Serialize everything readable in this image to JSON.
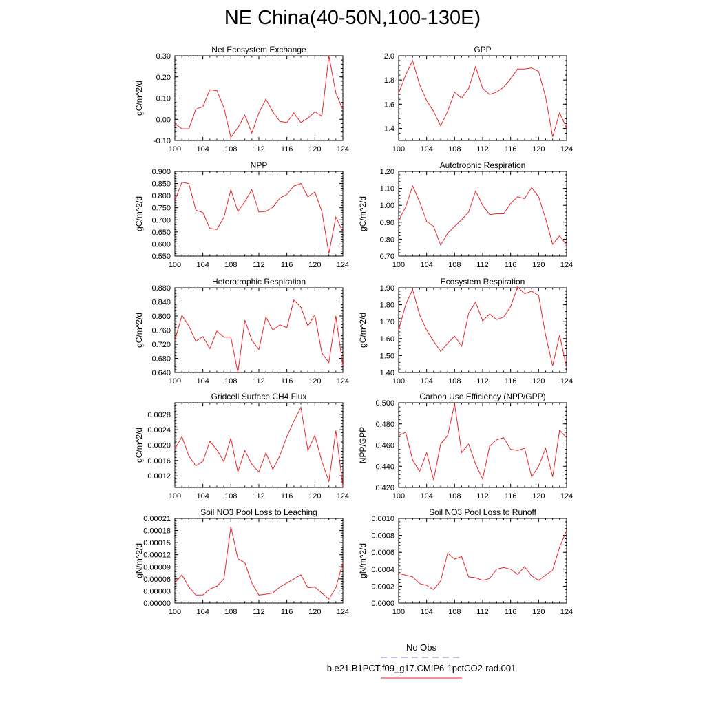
{
  "title": "NE China(40-50N,100-130E)",
  "legend": {
    "entries": [
      {
        "label": "No Obs",
        "color": "#7b7bd6",
        "dashed": true
      },
      {
        "label": "b.e21.B1PCT.f09_g17.CMIP6-1pctCO2-rad.001",
        "color": "#e8262a",
        "dashed": false
      }
    ]
  },
  "line_color": "#e8262a",
  "chart_data": [
    {
      "type": "line",
      "title": "Net Ecosystem Exchange",
      "ylabel": "gC/m^2/d",
      "xlim": [
        100,
        124
      ],
      "ylim": [
        -0.1,
        0.3
      ],
      "xticks": [
        "100",
        "104",
        "108",
        "112",
        "116",
        "120",
        "124"
      ],
      "yticks": [
        "-0.10",
        "0.00",
        "0.10",
        "0.20",
        "0.30"
      ],
      "x": [
        100,
        101,
        102,
        103,
        104,
        105,
        106,
        107,
        108,
        109,
        110,
        111,
        112,
        113,
        114,
        115,
        116,
        117,
        118,
        119,
        120,
        121,
        122,
        123,
        124
      ],
      "y": [
        -0.02,
        -0.045,
        -0.045,
        0.048,
        0.06,
        0.14,
        0.135,
        0.055,
        -0.085,
        -0.04,
        0.02,
        -0.065,
        0.03,
        0.095,
        0.035,
        -0.01,
        -0.015,
        0.03,
        -0.015,
        0.005,
        0.035,
        0.015,
        0.3,
        0.125,
        0.045
      ]
    },
    {
      "type": "line",
      "title": "GPP",
      "ylabel": "",
      "xlim": [
        100,
        124
      ],
      "ylim": [
        1.3,
        2.0
      ],
      "xticks": [
        "100",
        "104",
        "108",
        "112",
        "116",
        "120",
        "124"
      ],
      "yticks": [
        "1.4",
        "1.6",
        "1.8",
        "2.0"
      ],
      "x": [
        100,
        101,
        102,
        103,
        104,
        105,
        106,
        107,
        108,
        109,
        110,
        111,
        112,
        113,
        114,
        115,
        116,
        117,
        118,
        119,
        120,
        121,
        122,
        123,
        124
      ],
      "y": [
        1.69,
        1.84,
        1.96,
        1.76,
        1.63,
        1.54,
        1.42,
        1.54,
        1.7,
        1.65,
        1.73,
        1.91,
        1.73,
        1.68,
        1.7,
        1.74,
        1.81,
        1.89,
        1.89,
        1.9,
        1.87,
        1.66,
        1.33,
        1.53,
        1.4
      ]
    },
    {
      "type": "line",
      "title": "NPP",
      "ylabel": "gC/m^2/d",
      "xlim": [
        100,
        124
      ],
      "ylim": [
        0.55,
        0.9
      ],
      "xticks": [
        "100",
        "104",
        "108",
        "112",
        "116",
        "120",
        "124"
      ],
      "yticks": [
        "0.550",
        "0.600",
        "0.650",
        "0.700",
        "0.750",
        "0.800",
        "0.850",
        "0.900"
      ],
      "x": [
        100,
        101,
        102,
        103,
        104,
        105,
        106,
        107,
        108,
        109,
        110,
        111,
        112,
        113,
        114,
        115,
        116,
        117,
        118,
        119,
        120,
        121,
        122,
        123,
        124
      ],
      "y": [
        0.78,
        0.855,
        0.85,
        0.74,
        0.73,
        0.665,
        0.66,
        0.71,
        0.825,
        0.735,
        0.775,
        0.825,
        0.732,
        0.735,
        0.752,
        0.79,
        0.805,
        0.84,
        0.85,
        0.795,
        0.815,
        0.735,
        0.56,
        0.712,
        0.65
      ]
    },
    {
      "type": "line",
      "title": "Autotrophic Respiration",
      "ylabel": "gC/m^2/d",
      "xlim": [
        100,
        124
      ],
      "ylim": [
        0.7,
        1.2
      ],
      "xticks": [
        "100",
        "104",
        "108",
        "112",
        "116",
        "120",
        "124"
      ],
      "yticks": [
        "0.70",
        "0.80",
        "0.90",
        "1.00",
        "1.10",
        "1.20"
      ],
      "x": [
        100,
        101,
        102,
        103,
        104,
        105,
        106,
        107,
        108,
        109,
        110,
        111,
        112,
        113,
        114,
        115,
        116,
        117,
        118,
        119,
        120,
        121,
        122,
        123,
        124
      ],
      "y": [
        0.91,
        0.99,
        1.115,
        1.02,
        0.905,
        0.875,
        0.765,
        0.835,
        0.875,
        0.915,
        0.96,
        1.085,
        1.0,
        0.945,
        0.95,
        0.95,
        1.01,
        1.05,
        1.04,
        1.105,
        1.05,
        0.92,
        0.77,
        0.82,
        0.765
      ]
    },
    {
      "type": "line",
      "title": "Heterotrophic Respiration",
      "ylabel": "gC/m^2/d",
      "xlim": [
        100,
        124
      ],
      "ylim": [
        0.64,
        0.88
      ],
      "xticks": [
        "100",
        "104",
        "108",
        "112",
        "116",
        "120",
        "124"
      ],
      "yticks": [
        "0.640",
        "0.680",
        "0.720",
        "0.760",
        "0.800",
        "0.840",
        "0.880"
      ],
      "x": [
        100,
        101,
        102,
        103,
        104,
        105,
        106,
        107,
        108,
        109,
        110,
        111,
        112,
        113,
        114,
        115,
        116,
        117,
        118,
        119,
        120,
        121,
        122,
        123,
        124
      ],
      "y": [
        0.73,
        0.802,
        0.772,
        0.728,
        0.742,
        0.708,
        0.757,
        0.74,
        0.74,
        0.64,
        0.788,
        0.732,
        0.705,
        0.797,
        0.76,
        0.775,
        0.767,
        0.845,
        0.825,
        0.772,
        0.803,
        0.695,
        0.668,
        0.8,
        0.658
      ]
    },
    {
      "type": "line",
      "title": "Ecosystem Respiration",
      "ylabel": "gC/m^2/d",
      "xlim": [
        100,
        124
      ],
      "ylim": [
        1.4,
        1.9
      ],
      "xticks": [
        "100",
        "104",
        "108",
        "112",
        "116",
        "120",
        "124"
      ],
      "yticks": [
        "1.40",
        "1.50",
        "1.60",
        "1.70",
        "1.80",
        "1.90"
      ],
      "x": [
        100,
        101,
        102,
        103,
        104,
        105,
        106,
        107,
        108,
        109,
        110,
        111,
        112,
        113,
        114,
        115,
        116,
        117,
        118,
        119,
        120,
        121,
        122,
        123,
        124
      ],
      "y": [
        1.65,
        1.8,
        1.89,
        1.74,
        1.65,
        1.585,
        1.525,
        1.572,
        1.615,
        1.555,
        1.75,
        1.815,
        1.705,
        1.745,
        1.712,
        1.727,
        1.79,
        1.905,
        1.865,
        1.88,
        1.855,
        1.62,
        1.44,
        1.62,
        1.43
      ]
    },
    {
      "type": "line",
      "title": "Gridcell Surface CH4 Flux",
      "ylabel": "gC/m^2/d",
      "xlim": [
        100,
        124
      ],
      "ylim": [
        0.0009,
        0.0031
      ],
      "xticks": [
        "100",
        "104",
        "108",
        "112",
        "116",
        "120",
        "124"
      ],
      "yticks": [
        "0.0012",
        "0.0016",
        "0.0020",
        "0.0024",
        "0.0028"
      ],
      "x": [
        100,
        101,
        102,
        103,
        104,
        105,
        106,
        107,
        108,
        109,
        110,
        111,
        112,
        113,
        114,
        115,
        116,
        117,
        118,
        119,
        120,
        121,
        122,
        123,
        124
      ],
      "y": [
        0.0019,
        0.00222,
        0.00172,
        0.00146,
        0.00158,
        0.0021,
        0.00188,
        0.00157,
        0.00218,
        0.0013,
        0.00186,
        0.0015,
        0.0013,
        0.0018,
        0.00137,
        0.00173,
        0.00222,
        0.00262,
        0.00298,
        0.00186,
        0.00225,
        0.00158,
        0.00105,
        0.00238,
        0.00093
      ]
    },
    {
      "type": "line",
      "title": "Carbon Use Efficiency (NPP/GPP)",
      "ylabel": "NPP/GPP",
      "xlim": [
        100,
        124
      ],
      "ylim": [
        0.42,
        0.5
      ],
      "xticks": [
        "100",
        "104",
        "108",
        "112",
        "116",
        "120",
        "124"
      ],
      "yticks": [
        "0.420",
        "0.440",
        "0.460",
        "0.480",
        "0.500"
      ],
      "x": [
        100,
        101,
        102,
        103,
        104,
        105,
        106,
        107,
        108,
        109,
        110,
        111,
        112,
        113,
        114,
        115,
        116,
        117,
        118,
        119,
        120,
        121,
        122,
        123,
        124
      ],
      "y": [
        0.469,
        0.472,
        0.446,
        0.435,
        0.453,
        0.427,
        0.461,
        0.469,
        0.499,
        0.453,
        0.461,
        0.442,
        0.428,
        0.459,
        0.465,
        0.467,
        0.456,
        0.455,
        0.457,
        0.43,
        0.44,
        0.457,
        0.43,
        0.474,
        0.467
      ]
    },
    {
      "type": "line",
      "title": "Soil NO3 Pool Loss to Leaching",
      "ylabel": "gN/m^2/d",
      "xlim": [
        100,
        124
      ],
      "ylim": [
        0.0,
        0.00021
      ],
      "xticks": [
        "100",
        "104",
        "108",
        "112",
        "116",
        "120",
        "124"
      ],
      "yticks": [
        "0.00000",
        "0.00003",
        "0.00006",
        "0.00009",
        "0.00012",
        "0.00015",
        "0.00018",
        "0.00021"
      ],
      "x": [
        100,
        101,
        102,
        103,
        104,
        105,
        106,
        107,
        108,
        109,
        110,
        111,
        112,
        113,
        114,
        115,
        116,
        117,
        118,
        119,
        120,
        121,
        122,
        123,
        124
      ],
      "y": [
        5e-05,
        7e-05,
        4e-05,
        2e-05,
        2e-05,
        3.5e-05,
        4.2e-05,
        6e-05,
        0.00019,
        0.00011,
        0.0001,
        5e-05,
        2e-05,
        2.2e-05,
        2.5e-05,
        4e-05,
        5e-05,
        6e-05,
        7e-05,
        3.8e-05,
        4e-05,
        2.5e-05,
        1e-05,
        3.8e-05,
        0.0001
      ]
    },
    {
      "type": "line",
      "title": "Soil NO3 Pool Loss to Runoff",
      "ylabel": "gN/m^2/d",
      "xlim": [
        100,
        124
      ],
      "ylim": [
        0.0,
        0.001
      ],
      "xticks": [
        "100",
        "104",
        "108",
        "112",
        "116",
        "120",
        "124"
      ],
      "yticks": [
        "0.0000",
        "0.0002",
        "0.0004",
        "0.0006",
        "0.0008",
        "0.0010"
      ],
      "x": [
        100,
        101,
        102,
        103,
        104,
        105,
        106,
        107,
        108,
        109,
        110,
        111,
        112,
        113,
        114,
        115,
        116,
        117,
        118,
        119,
        120,
        121,
        122,
        123,
        124
      ],
      "y": [
        0.00035,
        0.00033,
        0.00031,
        0.00023,
        0.00021,
        0.00016,
        0.00026,
        0.00059,
        0.00052,
        0.00055,
        0.00031,
        0.0003,
        0.00027,
        0.00029,
        0.0004,
        0.00042,
        0.0004,
        0.00034,
        0.00043,
        0.00032,
        0.00027,
        0.00033,
        0.00039,
        0.00066,
        0.00086
      ]
    }
  ]
}
